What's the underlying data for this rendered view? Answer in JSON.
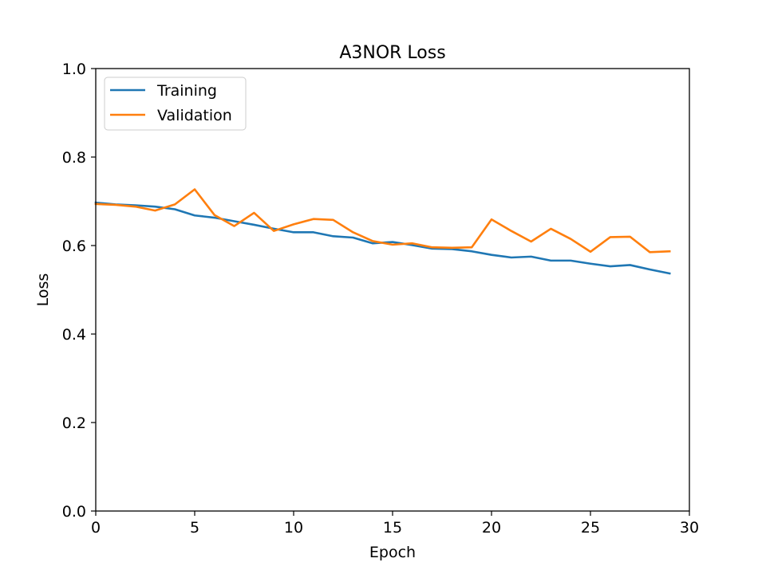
{
  "chart_data": {
    "type": "line",
    "title": "A3NOR Loss",
    "xlabel": "Epoch",
    "ylabel": "Loss",
    "xlim": [
      0,
      30
    ],
    "ylim": [
      0,
      1
    ],
    "xticks": [
      0,
      5,
      10,
      15,
      20,
      25,
      30
    ],
    "yticks": [
      0.0,
      0.2,
      0.4,
      0.6,
      0.8,
      1.0
    ],
    "xtick_labels": [
      "0",
      "5",
      "10",
      "15",
      "20",
      "25",
      "30"
    ],
    "ytick_labels": [
      "0.0",
      "0.2",
      "0.4",
      "0.6",
      "0.8",
      "1.0"
    ],
    "grid": false,
    "legend_position": "upper-left",
    "x": [
      0,
      1,
      2,
      3,
      4,
      5,
      6,
      7,
      8,
      9,
      10,
      11,
      12,
      13,
      14,
      15,
      16,
      17,
      18,
      19,
      20,
      21,
      22,
      23,
      24,
      25,
      26,
      27,
      28,
      29
    ],
    "series": [
      {
        "name": "Training",
        "color": "#1f77b4",
        "values": [
          0.697,
          0.693,
          0.691,
          0.688,
          0.682,
          0.668,
          0.663,
          0.655,
          0.647,
          0.638,
          0.63,
          0.63,
          0.621,
          0.618,
          0.605,
          0.608,
          0.601,
          0.593,
          0.592,
          0.587,
          0.579,
          0.573,
          0.575,
          0.566,
          0.566,
          0.559,
          0.553,
          0.556,
          0.546,
          0.537
        ]
      },
      {
        "name": "Validation",
        "color": "#ff7f0e",
        "values": [
          0.694,
          0.692,
          0.688,
          0.679,
          0.693,
          0.727,
          0.669,
          0.644,
          0.674,
          0.633,
          0.648,
          0.66,
          0.658,
          0.63,
          0.61,
          0.602,
          0.605,
          0.596,
          0.595,
          0.596,
          0.659,
          0.633,
          0.609,
          0.638,
          0.615,
          0.586,
          0.619,
          0.62,
          0.585,
          0.587
        ]
      }
    ]
  }
}
